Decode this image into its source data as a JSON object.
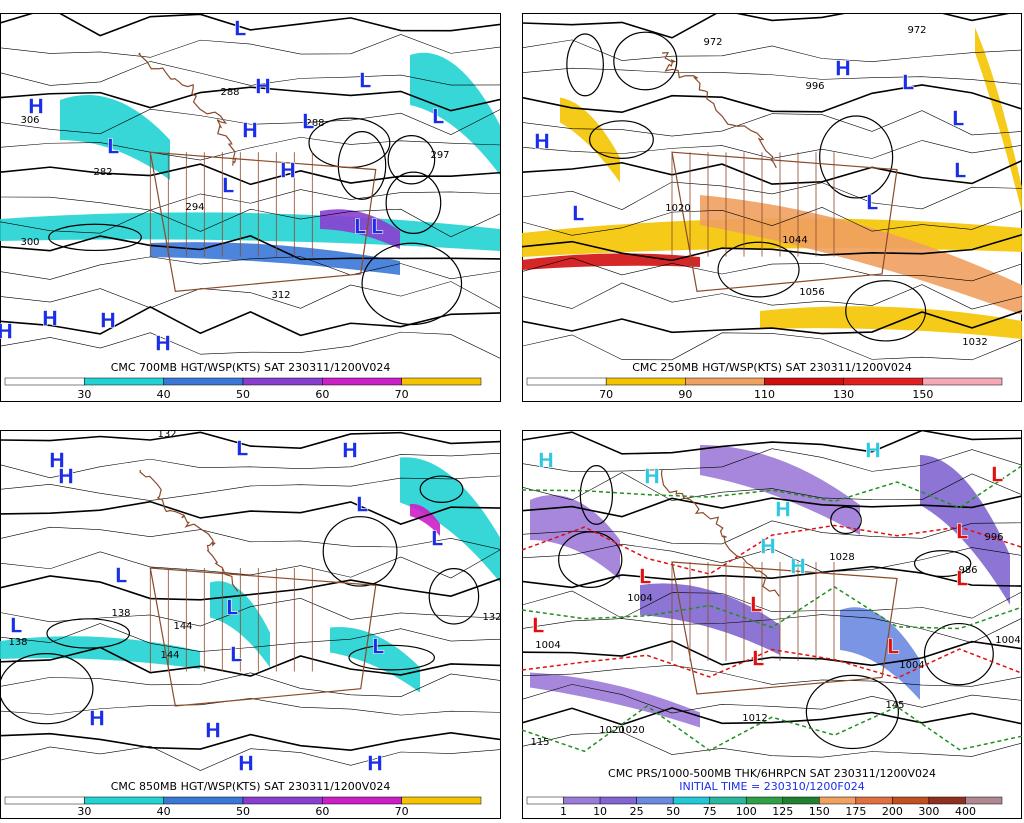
{
  "panels": [
    {
      "title": "CMC 700MB HGT/WSP(KTS) SAT 230311/1200V024",
      "colorbar": {
        "ticks": [
          30,
          40,
          50,
          60,
          70
        ],
        "colors": [
          "#ffffff",
          "#22d3d3",
          "#3a78d8",
          "#8a3ed0",
          "#cc1fc8",
          "#f5c400"
        ]
      },
      "center_colors": {
        "H": "#1a2ee8",
        "L": "#1a2ee8"
      },
      "centers": [
        "H",
        "L",
        "L",
        "H",
        "H",
        "L",
        "H",
        "L",
        "L",
        "L",
        "L",
        "L",
        "H",
        "H",
        "H",
        "H"
      ],
      "contour_labels": [
        "306",
        "282",
        "288",
        "288",
        "297",
        "300",
        "312",
        "294"
      ]
    },
    {
      "title": "CMC 250MB HGT/WSP(KTS) SAT 230311/1200V024",
      "colorbar": {
        "ticks": [
          70,
          90,
          110,
          130,
          150
        ],
        "colors": [
          "#ffffff",
          "#f5c400",
          "#f0a060",
          "#d01010",
          "#e02020",
          "#f4a8b8"
        ]
      },
      "center_colors": {
        "H": "#1a2ee8",
        "L": "#1a2ee8"
      },
      "centers": [
        "H",
        "H",
        "L",
        "L",
        "L",
        "L",
        "L"
      ],
      "contour_labels": [
        "972",
        "972",
        "996",
        "1020",
        "1044",
        "1056",
        "1032"
      ]
    },
    {
      "title": "CMC 850MB HGT/WSP(KTS) SAT 230311/1200V024",
      "colorbar": {
        "ticks": [
          30,
          40,
          50,
          60,
          70
        ],
        "colors": [
          "#ffffff",
          "#22d3d3",
          "#3a78d8",
          "#8a3ed0",
          "#cc1fc8",
          "#f5c400"
        ]
      },
      "center_colors": {
        "H": "#1a2ee8",
        "L": "#1a2ee8"
      },
      "centers": [
        "H",
        "H",
        "L",
        "H",
        "L",
        "L",
        "L",
        "L",
        "L",
        "L",
        "L",
        "H",
        "H",
        "H",
        "H"
      ],
      "contour_labels": [
        "132",
        "138",
        "138",
        "144",
        "144",
        "132"
      ]
    },
    {
      "title": "CMC PRS/1000-500MB THK/6HRPCN SAT 230311/1200V024",
      "subtitle": "INITIAL TIME = 230310/1200F024",
      "colorbar": {
        "ticks": [
          1,
          10,
          25,
          50,
          75,
          100,
          125,
          150,
          175,
          200,
          300,
          400
        ],
        "colors": [
          "#ffffff",
          "#9c7ad8",
          "#8066d0",
          "#6a8ae0",
          "#22c8d8",
          "#28b8a0",
          "#30a048",
          "#208030",
          "#f0a060",
          "#e07040",
          "#c05020",
          "#903020",
          "#b08890"
        ]
      },
      "center_colors": {
        "H": "#30c8e0",
        "L": "#e01010"
      },
      "centers": [
        "H",
        "H",
        "H",
        "H",
        "H",
        "H",
        "L",
        "L",
        "L",
        "L",
        "L",
        "L",
        "L",
        "L"
      ],
      "contour_labels": [
        "1004",
        "1004",
        "1012",
        "1020",
        "1020",
        "1028",
        "996",
        "986",
        "1004",
        "115",
        "145",
        "1004"
      ]
    }
  ]
}
